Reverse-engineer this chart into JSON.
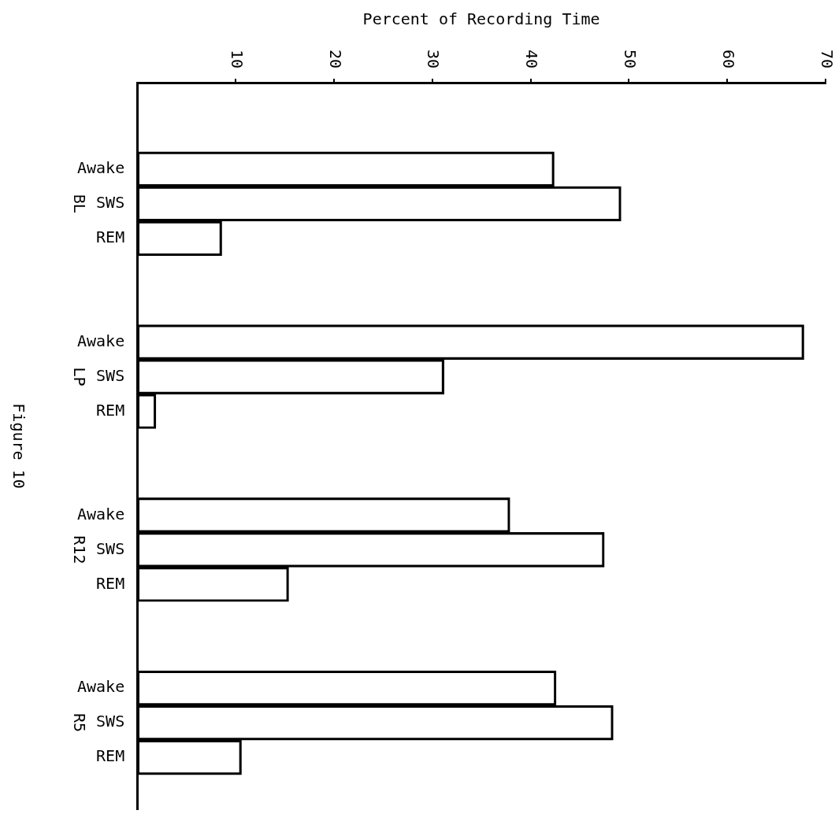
{
  "chart_data": {
    "type": "bar",
    "orientation": "horizontal",
    "title": "Figure 10",
    "xlabel": "Percent of Recording Time",
    "categories": [
      null,
      null,
      "Awake",
      "SWS",
      "REM",
      null,
      null,
      "Awake",
      "SWS",
      "REM",
      null,
      null,
      "Awake",
      "SWS",
      "REM",
      null,
      null,
      "Awake",
      "SWS",
      "REM",
      null
    ],
    "values": [
      null,
      null,
      42.4,
      49.2,
      8.6,
      null,
      null,
      67.8,
      31.2,
      1.9,
      null,
      null,
      37.9,
      47.5,
      15.4,
      null,
      null,
      42.6,
      48.4,
      10.6,
      null
    ],
    "color": "#000000",
    "xlim": [
      0,
      70
    ],
    "xticks": [
      10,
      20,
      30,
      40,
      50,
      60,
      70
    ],
    "annotations": [
      "BL",
      "LP",
      "R12",
      "R5"
    ]
  }
}
